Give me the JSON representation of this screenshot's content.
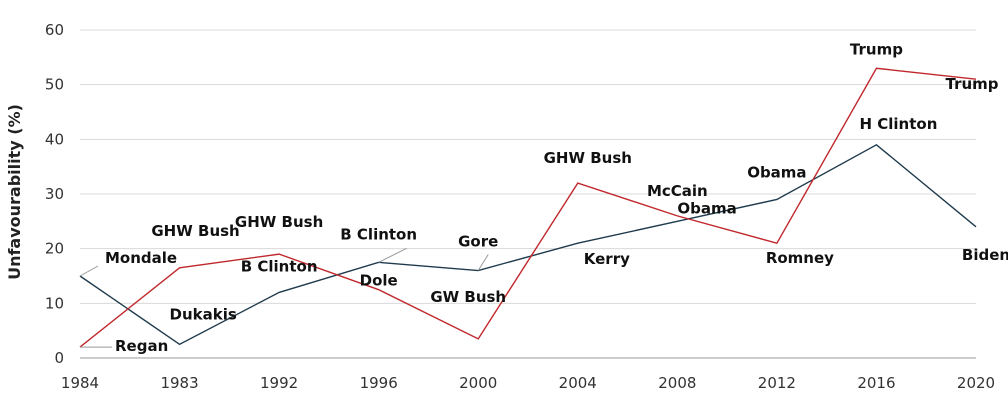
{
  "chart_data": {
    "type": "line",
    "title": "",
    "xlabel": "",
    "ylabel": "Unfavourability (%)",
    "categories": [
      "1984",
      "1983",
      "1992",
      "1996",
      "2000",
      "2004",
      "2008",
      "2012",
      "2016",
      "2020"
    ],
    "ylim": [
      0,
      60
    ],
    "yticks": [
      0,
      10,
      20,
      30,
      40,
      50,
      60
    ],
    "grid": true,
    "legend": "none",
    "series": [
      {
        "color": "#1f3b4d",
        "values": [
          15,
          2.5,
          12,
          17.5,
          16,
          21,
          25,
          29,
          39,
          24
        ],
        "labels": [
          "Mondale",
          "Dukakis",
          "B Clinton",
          "B Clinton",
          "Gore",
          "Kerry",
          "Obama",
          "Obama",
          "H Clinton",
          "Biden"
        ]
      },
      {
        "color": "#c0282d",
        "values": [
          2,
          16.5,
          19,
          12.5,
          3.5,
          32,
          26,
          21,
          53,
          51
        ],
        "labels": [
          "Regan",
          "GHW Bush",
          "GHW Bush",
          "Dole",
          "GW Bush",
          "GHW Bush",
          "McCain",
          "Romney",
          "Trump",
          "Trump"
        ]
      }
    ]
  }
}
